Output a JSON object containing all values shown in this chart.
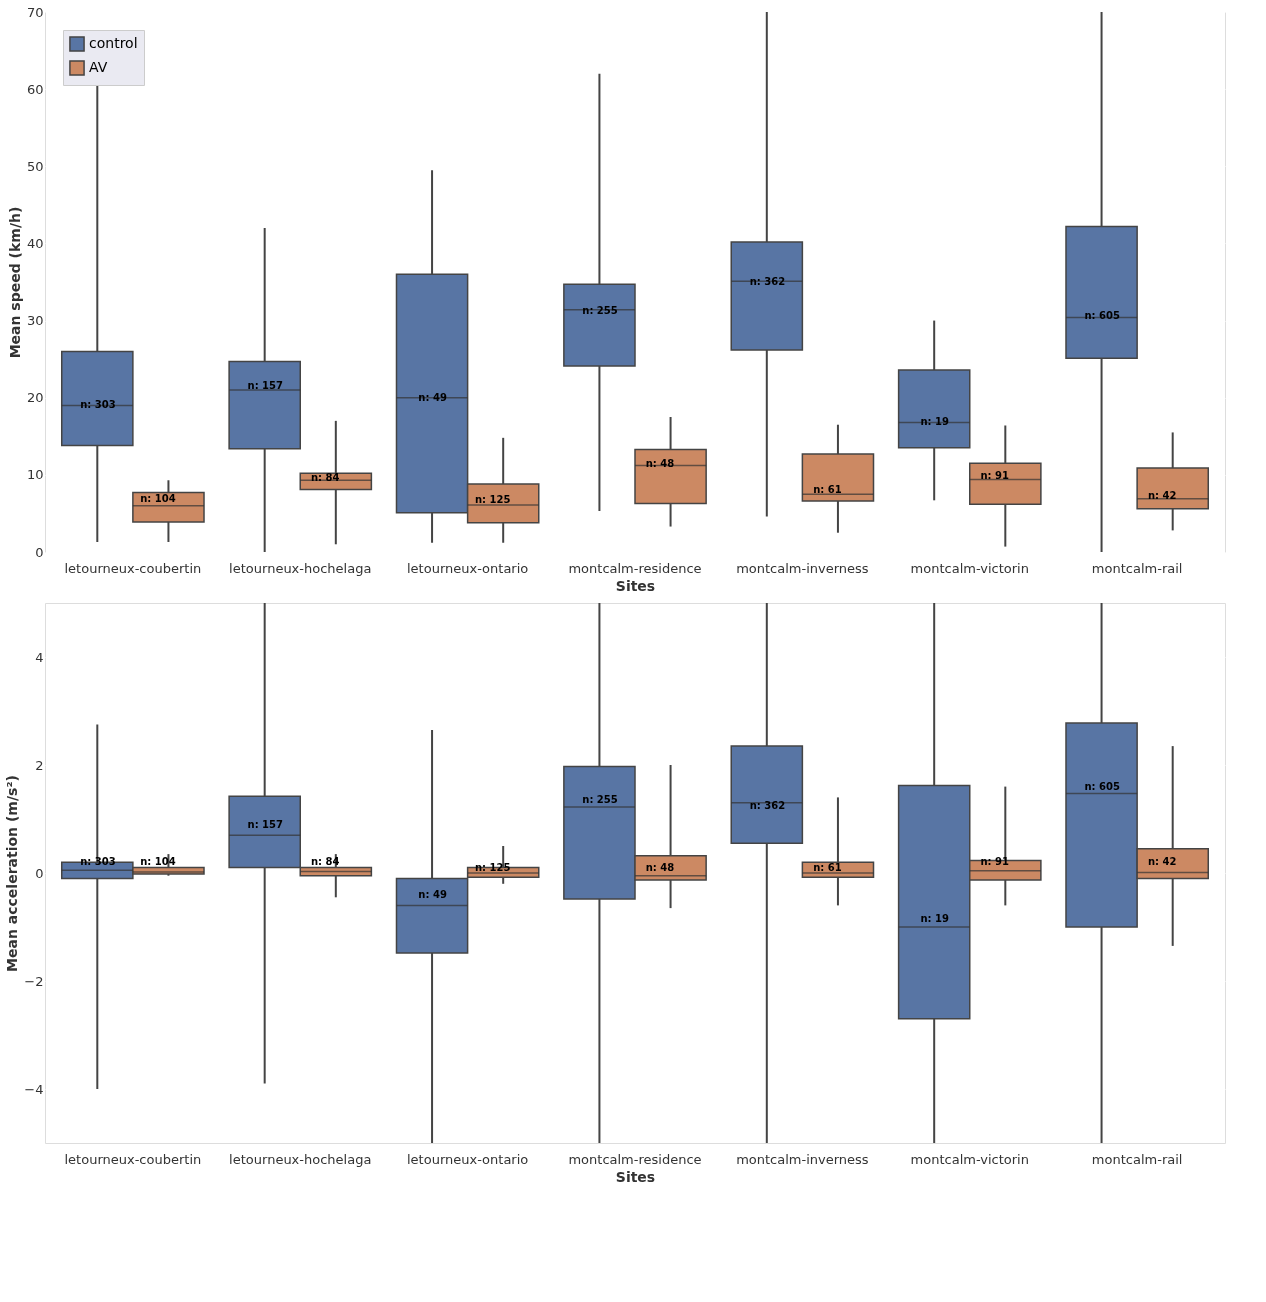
{
  "chart_data": [
    {
      "type": "box",
      "xlabel": "Sites",
      "ylabel": "Mean speed (km/h)",
      "categories": [
        "letourneux-coubertin",
        "letourneux-hochelaga",
        "letourneux-ontario",
        "montcalm-residence",
        "montcalm-inverness",
        "montcalm-victorin",
        "montcalm-rail"
      ],
      "ylim": [
        0,
        70
      ],
      "yticks": [
        0,
        10,
        20,
        30,
        40,
        50,
        60,
        70
      ],
      "grid": "y",
      "legend": "top left",
      "series": [
        {
          "name": "control",
          "color": "#5875a4",
          "boxes": [
            {
              "low": 1.3,
              "q1": 13.8,
              "median": 19,
              "q3": 26,
              "high": 62
            },
            {
              "low": 0,
              "q1": 13.4,
              "median": 21,
              "q3": 24.7,
              "high": 42
            },
            {
              "low": 1.2,
              "q1": 5.1,
              "median": 20,
              "q3": 36,
              "high": 49.5
            },
            {
              "low": 5.3,
              "q1": 24.1,
              "median": 31.4,
              "q3": 34.7,
              "high": 62
            },
            {
              "low": 4.6,
              "q1": 26.2,
              "median": 35.1,
              "q3": 40.2,
              "high": 70
            },
            {
              "low": 6.7,
              "q1": 13.5,
              "median": 16.8,
              "q3": 23.6,
              "high": 30
            },
            {
              "low": 0,
              "q1": 25.1,
              "median": 30.4,
              "q3": 42.2,
              "high": 70
            }
          ]
        },
        {
          "name": "AV",
          "color": "#cc8963",
          "boxes": [
            {
              "low": 1.3,
              "q1": 3.9,
              "median": 6.0,
              "q3": 7.7,
              "high": 9.3
            },
            {
              "low": 1,
              "q1": 8.1,
              "median": 9.3,
              "q3": 10.2,
              "high": 17
            },
            {
              "low": 1.2,
              "q1": 3.8,
              "median": 6.1,
              "q3": 8.8,
              "high": 14.8
            },
            {
              "low": 3.3,
              "q1": 6.3,
              "median": 11.2,
              "q3": 13.3,
              "high": 17.5
            },
            {
              "low": 2.5,
              "q1": 6.6,
              "median": 7.5,
              "q3": 12.7,
              "high": 16.5
            },
            {
              "low": 0.7,
              "q1": 6.2,
              "median": 9.4,
              "q3": 11.5,
              "high": 16.4
            },
            {
              "low": 2.8,
              "q1": 5.6,
              "median": 6.9,
              "q3": 10.9,
              "high": 15.5
            }
          ]
        }
      ],
      "annotations": [
        {
          "text": "n: 303",
          "x": "letourneux-coubertin",
          "y": 19
        },
        {
          "text": "n: 104",
          "x": "letourneux-coubertin",
          "y": 6.9
        },
        {
          "text": "n: 157",
          "x": "letourneux-hochelaga",
          "y": 21.5
        },
        {
          "text": "n: 84",
          "x": "letourneux-hochelaga",
          "y": 9.6
        },
        {
          "text": "n: 49",
          "x": "letourneux-ontario",
          "y": 20
        },
        {
          "text": "n: 125",
          "x": "letourneux-ontario",
          "y": 6.7
        },
        {
          "text": "n: 255",
          "x": "montcalm-residence",
          "y": 31.2
        },
        {
          "text": "n: 48",
          "x": "montcalm-residence",
          "y": 11.4
        },
        {
          "text": "n: 362",
          "x": "montcalm-inverness",
          "y": 35
        },
        {
          "text": "n: 61",
          "x": "montcalm-inverness",
          "y": 8
        },
        {
          "text": "n: 19",
          "x": "montcalm-victorin",
          "y": 16.9
        },
        {
          "text": "n: 91",
          "x": "montcalm-victorin",
          "y": 9.8
        },
        {
          "text": "n: 605",
          "x": "montcalm-rail",
          "y": 30.6
        },
        {
          "text": "n: 42",
          "x": "montcalm-rail",
          "y": 7.3
        }
      ]
    },
    {
      "type": "box",
      "xlabel": "Sites",
      "ylabel": "Mean acceleration (m/s²)",
      "categories": [
        "letourneux-coubertin",
        "letourneux-hochelaga",
        "letourneux-ontario",
        "montcalm-residence",
        "montcalm-inverness",
        "montcalm-victorin",
        "montcalm-rail"
      ],
      "ylim": [
        -5,
        5
      ],
      "yticks": [
        {
          "value": -4,
          "label": "−4"
        },
        {
          "value": -2,
          "label": "−2"
        },
        0,
        2,
        4
      ],
      "grid": "y",
      "legend": "top left",
      "series": [
        {
          "name": "control",
          "color": "#5875a4",
          "boxes": [
            {
              "low": -4.0,
              "q1": -0.1,
              "median": 0.05,
              "q3": 0.2,
              "high": 2.75
            },
            {
              "low": -3.9,
              "q1": 0.1,
              "median": 0.7,
              "q3": 1.42,
              "high": 5
            },
            {
              "low": -5,
              "q1": -1.48,
              "median": -0.6,
              "q3": -0.1,
              "high": 2.65
            },
            {
              "low": -5,
              "q1": -0.48,
              "median": 1.22,
              "q3": 1.97,
              "high": 5
            },
            {
              "low": -5,
              "q1": 0.55,
              "median": 1.3,
              "q3": 2.35,
              "high": 5
            },
            {
              "low": -5,
              "q1": -2.7,
              "median": -1.0,
              "q3": 1.62,
              "high": 5
            },
            {
              "low": -5,
              "q1": -1.0,
              "median": 1.47,
              "q3": 2.78,
              "high": 5
            }
          ]
        },
        {
          "name": "AV",
          "color": "#cc8963",
          "boxes": [
            {
              "low": -0.05,
              "q1": -0.02,
              "median": 0.02,
              "q3": 0.1,
              "high": 0.35
            },
            {
              "low": -0.45,
              "q1": -0.05,
              "median": 0.03,
              "q3": 0.1,
              "high": 0.35
            },
            {
              "low": -0.2,
              "q1": -0.08,
              "median": 0,
              "q3": 0.1,
              "high": 0.5
            },
            {
              "low": -0.65,
              "q1": -0.13,
              "median": -0.05,
              "q3": 0.32,
              "high": 2.0
            },
            {
              "low": -0.6,
              "q1": -0.08,
              "median": 0,
              "q3": 0.2,
              "high": 1.4
            },
            {
              "low": -0.6,
              "q1": -0.13,
              "median": 0.04,
              "q3": 0.23,
              "high": 1.6
            },
            {
              "low": -1.35,
              "q1": -0.1,
              "median": 0.01,
              "q3": 0.45,
              "high": 2.35
            }
          ]
        }
      ],
      "annotations": [
        {
          "text": "n: 303",
          "x": "letourneux-coubertin",
          "y": 0.2
        },
        {
          "text": "n: 104",
          "x": "letourneux-coubertin",
          "y": 0.2
        },
        {
          "text": "n: 157",
          "x": "letourneux-hochelaga",
          "y": 0.88
        },
        {
          "text": "n: 84",
          "x": "letourneux-hochelaga",
          "y": 0.2
        },
        {
          "text": "n: 49",
          "x": "letourneux-ontario",
          "y": -0.4
        },
        {
          "text": "n: 125",
          "x": "letourneux-ontario",
          "y": 0.1
        },
        {
          "text": "n: 255",
          "x": "montcalm-residence",
          "y": 1.35
        },
        {
          "text": "n: 48",
          "x": "montcalm-residence",
          "y": 0.1
        },
        {
          "text": "n: 362",
          "x": "montcalm-inverness",
          "y": 1.25
        },
        {
          "text": "n: 61",
          "x": "montcalm-inverness",
          "y": 0.1
        },
        {
          "text": "n: 19",
          "x": "montcalm-victorin",
          "y": -0.85
        },
        {
          "text": "n: 91",
          "x": "montcalm-victorin",
          "y": 0.2
        },
        {
          "text": "n: 605",
          "x": "montcalm-rail",
          "y": 1.6
        },
        {
          "text": "n: 42",
          "x": "montcalm-rail",
          "y": 0.2
        }
      ]
    }
  ]
}
